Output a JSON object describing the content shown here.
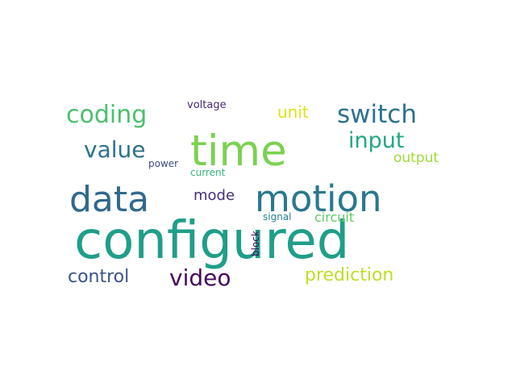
{
  "words": [
    {
      "text": "configured",
      "weight": 1.0,
      "color": "#1f9e89"
    },
    {
      "text": "time",
      "weight": 0.83,
      "color": "#7ad151"
    },
    {
      "text": "motion",
      "weight": 0.7,
      "color": "#2a788e"
    },
    {
      "text": "data",
      "weight": 0.68,
      "color": "#31688e"
    },
    {
      "text": "switch",
      "weight": 0.48,
      "color": "#2c728e"
    },
    {
      "text": "coding",
      "weight": 0.47,
      "color": "#4ac16d"
    },
    {
      "text": "value",
      "weight": 0.44,
      "color": "#2d708e"
    },
    {
      "text": "video",
      "weight": 0.44,
      "color": "#46085c"
    },
    {
      "text": "input",
      "weight": 0.42,
      "color": "#22a884"
    },
    {
      "text": "prediction",
      "weight": 0.35,
      "color": "#bddf26"
    },
    {
      "text": "control",
      "weight": 0.34,
      "color": "#3b528b"
    },
    {
      "text": "unit",
      "weight": 0.32,
      "color": "#dde318"
    },
    {
      "text": "mode",
      "weight": 0.28,
      "color": "#472d7b"
    },
    {
      "text": "output",
      "weight": 0.26,
      "color": "#a0da39"
    },
    {
      "text": "circuit",
      "weight": 0.25,
      "color": "#5ec962"
    },
    {
      "text": "voltage",
      "weight": 0.2,
      "color": "#482878"
    },
    {
      "text": "signal",
      "weight": 0.19,
      "color": "#26828e"
    },
    {
      "text": "current",
      "weight": 0.19,
      "color": "#35b779"
    },
    {
      "text": "power",
      "weight": 0.19,
      "color": "#3e4a89"
    },
    {
      "text": "block",
      "weight": 0.19,
      "color": "#440154"
    }
  ]
}
